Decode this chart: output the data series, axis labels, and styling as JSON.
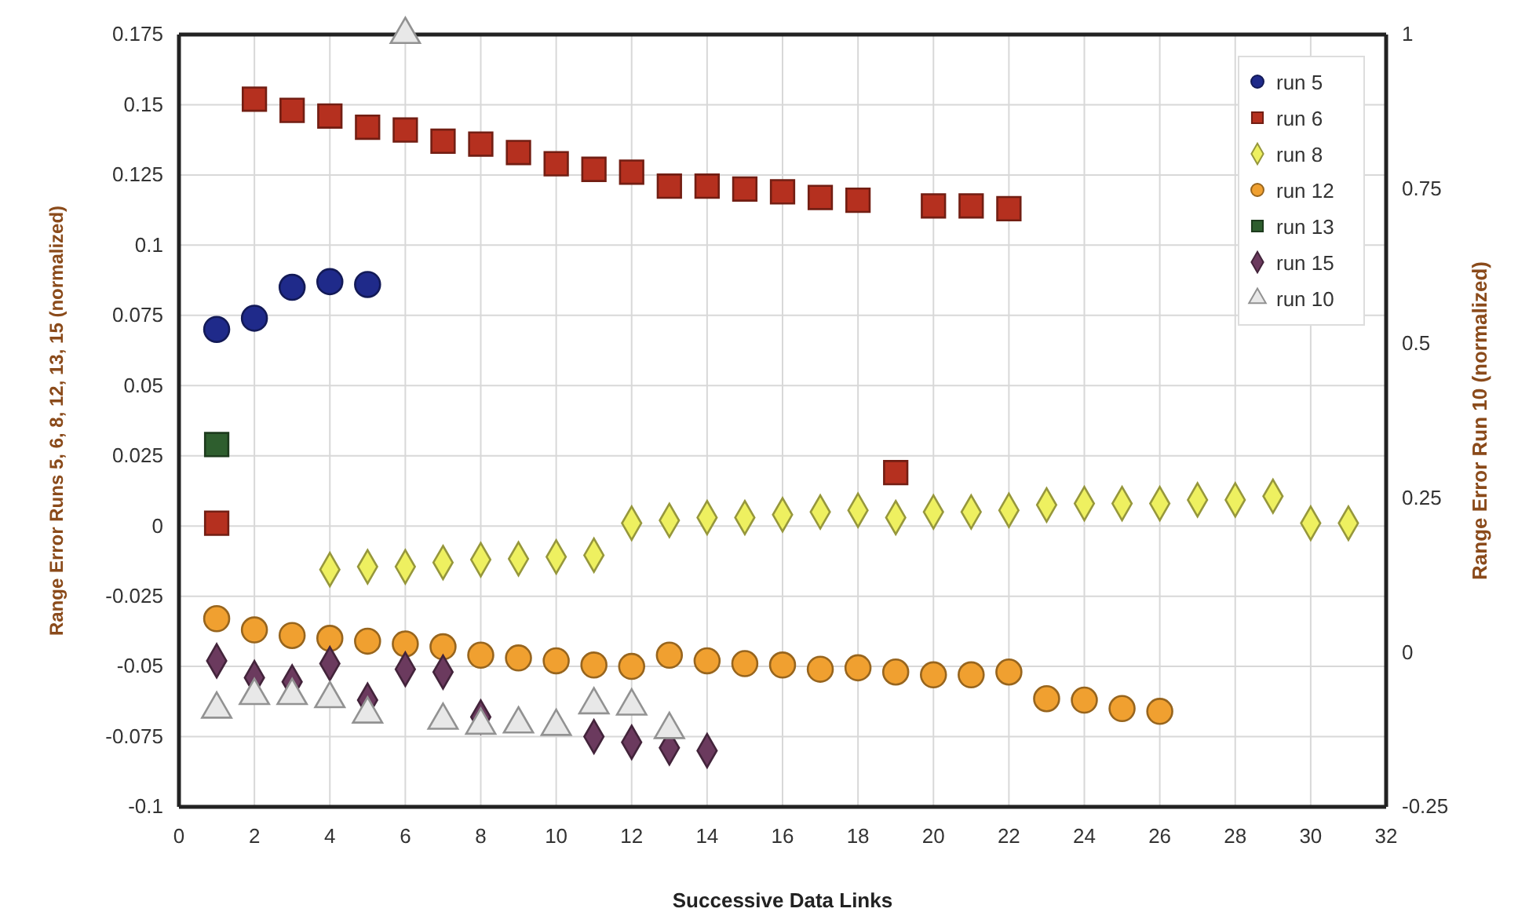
{
  "chart_data": {
    "type": "scatter",
    "xlabel": "Successive Data Links",
    "ylabel": "Range Error Runs 5, 6, 8, 12, 13, 15 (normalized)",
    "y2label": "Range Error Run 10 (normalized)",
    "xlim": [
      0,
      32
    ],
    "xticks": [
      0,
      2,
      4,
      6,
      8,
      10,
      12,
      14,
      16,
      18,
      20,
      22,
      24,
      26,
      28,
      30,
      32
    ],
    "ylim": [
      -0.1,
      0.175
    ],
    "yticks": [
      -0.1,
      -0.075,
      -0.05,
      -0.025,
      0,
      0.025,
      0.05,
      0.075,
      0.1,
      0.125,
      0.15,
      0.175
    ],
    "y2lim": [
      -0.25,
      1
    ],
    "y2ticks": [
      -0.25,
      0,
      0.25,
      0.5,
      0.75,
      1
    ],
    "grid": true,
    "legend": "top right",
    "series": [
      {
        "name": "run 5",
        "color": "#1f2a8a",
        "marker": "circle",
        "x": [
          1,
          2,
          3,
          4,
          5
        ],
        "values": [
          0.07,
          0.074,
          0.085,
          0.087,
          0.086
        ]
      },
      {
        "name": "run 6",
        "color": "#b5301f",
        "marker": "square",
        "x": [
          1,
          2,
          3,
          4,
          5,
          6,
          7,
          8,
          9,
          10,
          11,
          12,
          13,
          14,
          15,
          16,
          17,
          18,
          19,
          20,
          21,
          22
        ],
        "values": [
          0.001,
          0.152,
          0.148,
          0.146,
          0.142,
          0.141,
          0.137,
          0.136,
          0.133,
          0.129,
          0.127,
          0.126,
          0.121,
          0.121,
          0.12,
          0.119,
          0.117,
          0.116,
          0.019,
          0.114,
          0.114,
          0.113
        ]
      },
      {
        "name": "run 8",
        "color": "#eef060",
        "marker": "diamond",
        "x": [
          4,
          5,
          6,
          7,
          8,
          9,
          10,
          11,
          12,
          13,
          14,
          15,
          16,
          17,
          18,
          19,
          20,
          21,
          22,
          23,
          24,
          25,
          26,
          27,
          28,
          29,
          30,
          31
        ],
        "values": [
          -0.0155,
          -0.0145,
          -0.0145,
          -0.013,
          -0.012,
          -0.0117,
          -0.011,
          -0.0104,
          0.001,
          0.002,
          0.003,
          0.003,
          0.004,
          0.005,
          0.0056,
          0.003,
          0.005,
          0.005,
          0.0056,
          0.0075,
          0.008,
          0.008,
          0.008,
          0.0093,
          0.0093,
          0.0106,
          0.001,
          0.001
        ]
      },
      {
        "name": "run 12",
        "color": "#f0a030",
        "marker": "circle",
        "x": [
          1,
          2,
          3,
          4,
          5,
          6,
          7,
          8,
          9,
          10,
          11,
          12,
          13,
          14,
          15,
          16,
          17,
          18,
          19,
          20,
          21,
          22,
          23,
          24,
          25,
          26
        ],
        "values": [
          -0.033,
          -0.037,
          -0.039,
          -0.04,
          -0.041,
          -0.042,
          -0.043,
          -0.046,
          -0.047,
          -0.048,
          -0.0495,
          -0.05,
          -0.046,
          -0.048,
          -0.049,
          -0.0495,
          -0.051,
          -0.0505,
          -0.052,
          -0.053,
          -0.053,
          -0.052,
          -0.0615,
          -0.062,
          -0.065,
          -0.066
        ]
      },
      {
        "name": "run 13",
        "color": "#2e5e2e",
        "marker": "square",
        "x": [
          1
        ],
        "values": [
          0.029
        ]
      },
      {
        "name": "run 15",
        "color": "#6b3a5e",
        "marker": "diamond",
        "x": [
          1,
          2,
          3,
          4,
          5,
          6,
          7,
          8,
          11,
          12,
          13,
          14
        ],
        "values": [
          -0.048,
          -0.054,
          -0.0555,
          -0.049,
          -0.062,
          -0.051,
          -0.052,
          -0.068,
          -0.075,
          -0.077,
          -0.079,
          -0.08
        ]
      },
      {
        "name": "run 10",
        "color": "#e8e8e8",
        "marker": "triangle",
        "axis": "y2",
        "x": [
          1,
          2,
          3,
          4,
          5,
          6,
          7,
          8,
          9,
          10,
          11,
          12,
          13
        ],
        "values": [
          -0.092,
          -0.07,
          -0.07,
          -0.075,
          -0.1,
          1,
          -0.11,
          -0.118,
          -0.116,
          -0.12,
          -0.085,
          -0.087,
          -0.125
        ]
      }
    ]
  }
}
